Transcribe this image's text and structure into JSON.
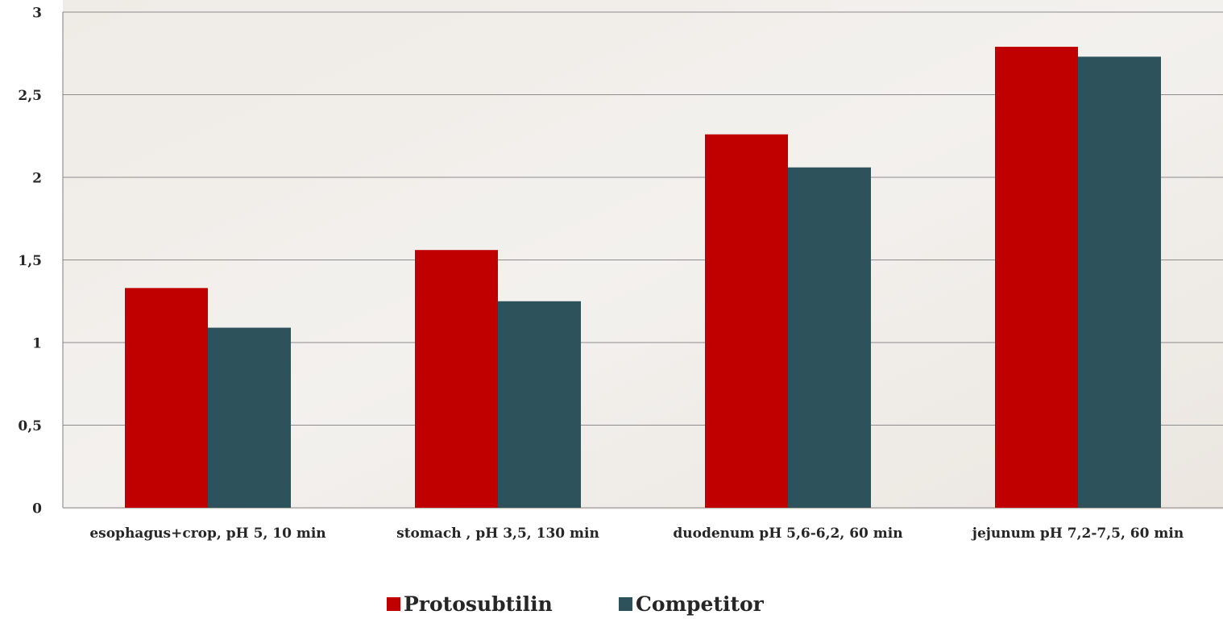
{
  "chart_data": {
    "type": "bar",
    "categories": [
      "esophagus+crop,  pH 5, 10 min",
      "stomach , pH 3,5, 130 min",
      "duodenum pH 5,6-6,2, 60 min",
      "jejunum pH 7,2-7,5, 60 min"
    ],
    "series": [
      {
        "name": "Protosubtilin",
        "color": "#c00000",
        "values": [
          1.33,
          1.56,
          2.26,
          2.79
        ]
      },
      {
        "name": "Competitor",
        "color": "#2d525b",
        "values": [
          1.09,
          1.25,
          2.06,
          2.73
        ]
      }
    ],
    "ylim": [
      0,
      3
    ],
    "yticks": [
      0,
      {
        "value": 0.5,
        "label": "0,5"
      },
      1,
      {
        "value": 1.5,
        "label": "1,5"
      },
      2,
      {
        "value": 2.5,
        "label": "2,5"
      },
      3
    ],
    "grid": true
  }
}
